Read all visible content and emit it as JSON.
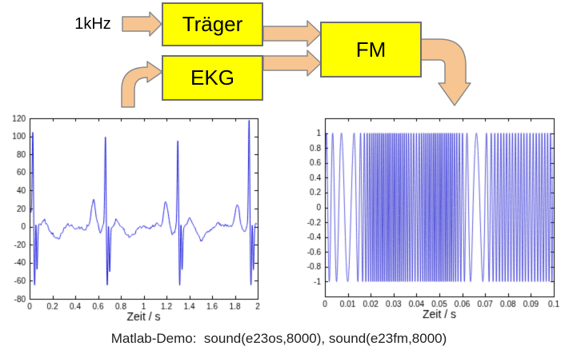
{
  "diagram": {
    "input_label": "1kHz",
    "blocks": [
      {
        "id": "traeger",
        "label": "Träger"
      },
      {
        "id": "ekg",
        "label": "EKG"
      },
      {
        "id": "fm",
        "label": "FM"
      }
    ],
    "colors": {
      "block_fill": "#FFFF00",
      "block_border": "#6E6E6E",
      "arrow_fill": "#F6C592",
      "arrow_border": "#8A8A8A"
    }
  },
  "chart_data": [
    {
      "type": "line",
      "name": "ekg-signal-plot",
      "title": "",
      "xlabel": "Zeit / s",
      "ylabel": "",
      "xlim": [
        0,
        2
      ],
      "ylim": [
        -80,
        120
      ],
      "grid": false,
      "legend": null,
      "line_color": "#1717D9",
      "axis_color": "#000000",
      "xtick_values": [
        0,
        0.2,
        0.4,
        0.6,
        0.8,
        1,
        1.2,
        1.4,
        1.6,
        1.8,
        2
      ],
      "xtick_labels": [
        "0",
        "0.2",
        "0.4",
        "0.6",
        "0.8",
        "1",
        "1.2",
        "1.4",
        "1.6",
        "1.8",
        "2"
      ],
      "ytick_values": [
        -80,
        -60,
        -40,
        -20,
        0,
        20,
        40,
        60,
        80,
        100,
        120
      ],
      "ytick_labels": [
        "-80",
        "-60",
        "-40",
        "-20",
        "0",
        "20",
        "40",
        "60",
        "80",
        "100",
        "120"
      ],
      "model": {
        "description": "EKG trace: 4 heartbeats, R peaks ~100-120, S dips ~-60, P/T bumps ~27, baseline ~0",
        "beat_times": [
          0.028,
          0.665,
          1.3,
          1.925
        ],
        "r_amplitudes": [
          104,
          101,
          97,
          120
        ],
        "r_sigma": 0.0055,
        "components": [
          {
            "dt": 0.016,
            "amp": -68,
            "sigma": 0.006
          },
          {
            "dt": 0.027,
            "amp": 24,
            "sigma": 0.0045
          },
          {
            "dt": 0.037,
            "amp": -50,
            "sigma": 0.0055
          },
          {
            "dt": -0.105,
            "amp": 27,
            "sigma": 0.018
          },
          {
            "dt": -0.045,
            "amp": -6,
            "sigma": 0.012
          },
          {
            "dt": 0.1,
            "amp": 7,
            "sigma": 0.02
          },
          {
            "dt": 0.215,
            "amp": -13,
            "sigma": 0.035
          }
        ],
        "start_bump": {
          "t": 0,
          "amp": 20,
          "sigma": 0.012
        },
        "wiggle": [
          [
            3.7,
            1.3
          ],
          [
            9.1,
            0.9
          ]
        ],
        "noise_amp": 2.2
      }
    },
    {
      "type": "line",
      "name": "fm-signal-plot",
      "title": "",
      "xlabel": "Zeit / s",
      "ylabel": "",
      "xlim": [
        0,
        0.1
      ],
      "ylim": [
        -1.2,
        1.2
      ],
      "grid": false,
      "legend": null,
      "line_color": "#2B2BD0",
      "axis_color": "#000000",
      "xtick_values": [
        0,
        0.01,
        0.02,
        0.03,
        0.04,
        0.05,
        0.06,
        0.07,
        0.08,
        0.09,
        0.1
      ],
      "xtick_labels": [
        "0",
        "0.01",
        "0.02",
        "0.03",
        "0.04",
        "0.05",
        "0.06",
        "0.07",
        "0.08",
        "0.09",
        "0.1"
      ],
      "ytick_values": [
        -1,
        -0.8,
        -0.6,
        -0.4,
        -0.2,
        0,
        0.2,
        0.4,
        0.6,
        0.8,
        1
      ],
      "ytick_labels": [
        "-1",
        "-0.8",
        "-0.6",
        "-0.4",
        "-0.2",
        "0",
        "0.2",
        "0.4",
        "0.6",
        "0.8",
        "1"
      ],
      "model": {
        "description": "FM carrier, unit amplitude, instantaneous frequency follows EKG; slow arcs near t=0.01 and t=0.066",
        "amplitude": 1,
        "freq_profile": [
          [
            0,
            420
          ],
          [
            0.004,
            300
          ],
          [
            0.008,
            180
          ],
          [
            0.012,
            170
          ],
          [
            0.015,
            420
          ],
          [
            0.018,
            820
          ],
          [
            0.021,
            1150
          ],
          [
            0.027,
            1250
          ],
          [
            0.033,
            1200
          ],
          [
            0.037,
            950
          ],
          [
            0.04,
            780
          ],
          [
            0.044,
            1150
          ],
          [
            0.049,
            1250
          ],
          [
            0.055,
            1200
          ],
          [
            0.059,
            800
          ],
          [
            0.062,
            380
          ],
          [
            0.065,
            170
          ],
          [
            0.068,
            160
          ],
          [
            0.071,
            420
          ],
          [
            0.074,
            700
          ],
          [
            0.078,
            820
          ],
          [
            0.082,
            760
          ],
          [
            0.086,
            830
          ],
          [
            0.09,
            700
          ],
          [
            0.094,
            820
          ],
          [
            0.1,
            780
          ]
        ]
      }
    }
  ],
  "caption": "Matlab-Demo:  sound(e23os,8000), sound(e23fm,8000)"
}
